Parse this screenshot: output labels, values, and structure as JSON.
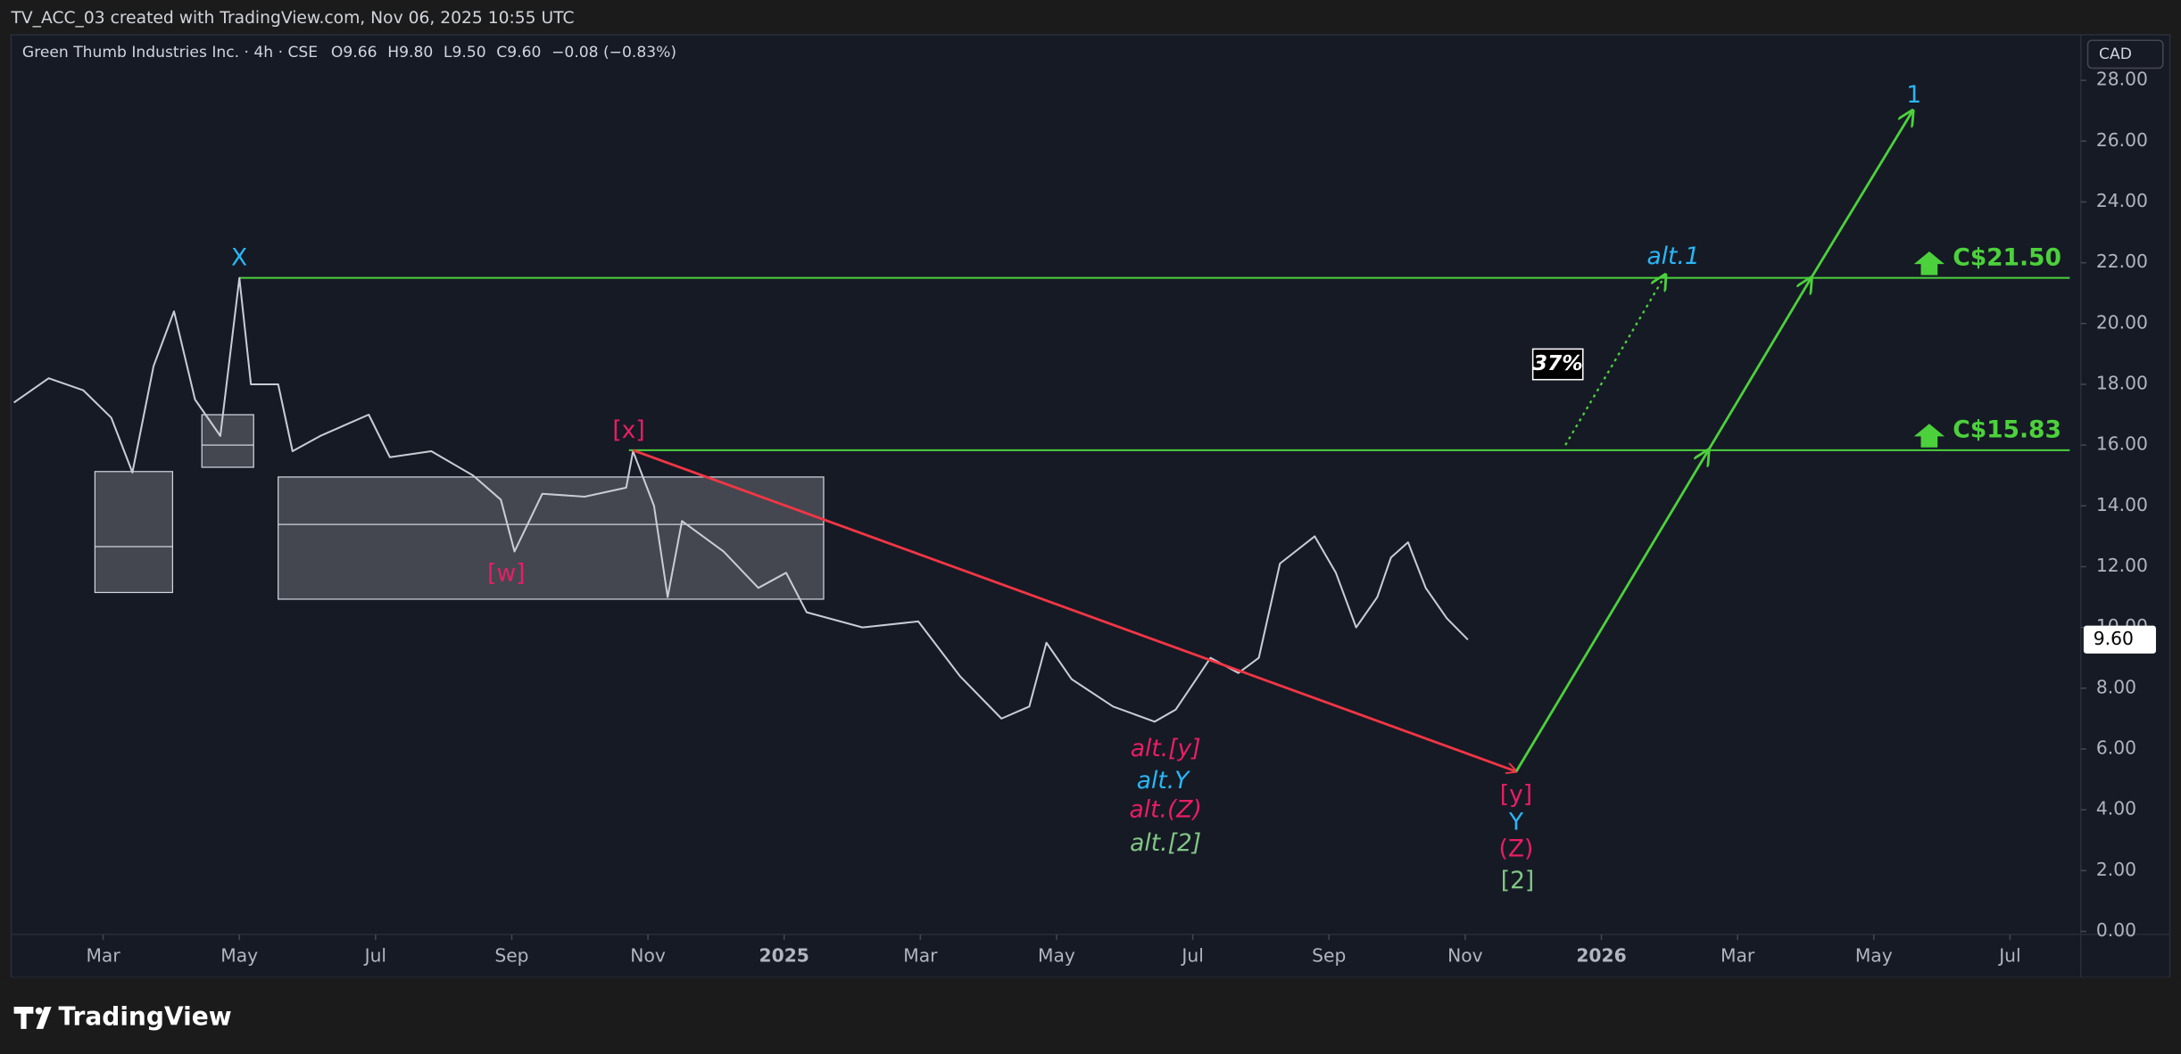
{
  "header": {
    "title": "TV_ACC_03 created with TradingView.com, Nov 06, 2025 10:55 UTC"
  },
  "footer": {
    "brand": "TradingView"
  },
  "chart_data": {
    "type": "line",
    "symbol": "Green Thumb Industries Inc. · 4h · CSE",
    "ohlc": [
      {
        "label": "O",
        "value": "9.66"
      },
      {
        "label": "H",
        "value": "9.80"
      },
      {
        "label": "L",
        "value": "9.50"
      },
      {
        "label": "C",
        "value": "9.60"
      }
    ],
    "change": "−0.08 (−0.83%)",
    "currency": "CAD",
    "last_price": {
      "value": 9.6,
      "label": "9.60"
    },
    "xlim": [
      0.69,
      31.04
    ],
    "ylim": [
      -0.1,
      29.5
    ],
    "xticks": [
      {
        "value": 2,
        "label": "Mar"
      },
      {
        "value": 4,
        "label": "May"
      },
      {
        "value": 6,
        "label": "Jul"
      },
      {
        "value": 8,
        "label": "Sep"
      },
      {
        "value": 10,
        "label": "Nov"
      },
      {
        "value": 12,
        "label": "2025"
      },
      {
        "value": 14,
        "label": "Mar"
      },
      {
        "value": 16,
        "label": "May"
      },
      {
        "value": 18,
        "label": "Jul"
      },
      {
        "value": 20,
        "label": "Sep"
      },
      {
        "value": 22,
        "label": "Nov"
      },
      {
        "value": 24,
        "label": "2026"
      },
      {
        "value": 26,
        "label": "Mar"
      },
      {
        "value": 28,
        "label": "May"
      },
      {
        "value": 30,
        "label": "Jul"
      }
    ],
    "yticks": [
      {
        "value": 0,
        "label": "0.00"
      },
      {
        "value": 2,
        "label": "2.00"
      },
      {
        "value": 4,
        "label": "4.00"
      },
      {
        "value": 6,
        "label": "6.00"
      },
      {
        "value": 8,
        "label": "8.00"
      },
      {
        "value": 10,
        "label": "10.00"
      },
      {
        "value": 12,
        "label": "12.00"
      },
      {
        "value": 14,
        "label": "14.00"
      },
      {
        "value": 16,
        "label": "16.00"
      },
      {
        "value": 18,
        "label": "18.00"
      },
      {
        "value": 20,
        "label": "20.00"
      },
      {
        "value": 22,
        "label": "22.00"
      },
      {
        "value": 24,
        "label": "24.00"
      },
      {
        "value": 26,
        "label": "26.00"
      },
      {
        "value": 28,
        "label": "28.00"
      }
    ],
    "series": [
      {
        "color": "#c9ccd4",
        "x": [
          0.69,
          1.2,
          1.71,
          2.12,
          2.43,
          2.74,
          3.04,
          3.35,
          3.72,
          4.0,
          4.17,
          4.57,
          4.78,
          5.19,
          5.9,
          6.21,
          6.82,
          7.43,
          7.84,
          8.04,
          8.45,
          9.07,
          9.68,
          9.78,
          10.09,
          10.29,
          10.5,
          11.11,
          11.62,
          12.03,
          12.33,
          13.15,
          13.97,
          14.58,
          15.19,
          15.6,
          15.85,
          16.22,
          16.83,
          17.44,
          17.75,
          18.26,
          18.67,
          18.97,
          19.28,
          19.79,
          20.1,
          20.4,
          20.71,
          20.91,
          21.16,
          21.42,
          21.73,
          22.04
        ],
        "values": [
          17.4,
          18.2,
          17.8,
          16.9,
          15.1,
          18.6,
          20.4,
          17.5,
          16.3,
          21.5,
          18.0,
          18.0,
          15.8,
          16.3,
          17.0,
          15.6,
          15.8,
          15.0,
          14.2,
          12.5,
          14.4,
          14.3,
          14.6,
          15.8,
          14.0,
          11.0,
          13.5,
          12.5,
          11.3,
          11.8,
          10.5,
          10.0,
          10.2,
          8.4,
          7.0,
          7.4,
          9.5,
          8.3,
          7.4,
          6.9,
          7.3,
          9.0,
          8.5,
          9.0,
          12.1,
          13.0,
          11.8,
          10.0,
          11.0,
          12.3,
          12.8,
          11.3,
          10.3,
          9.6
        ]
      }
    ],
    "zones": [
      {
        "x0": 1.88,
        "x1": 3.02,
        "top": 15.13,
        "mid": 12.66,
        "bottom": 11.15
      },
      {
        "x0": 3.45,
        "x1": 4.21,
        "top": 17.0,
        "mid": 16.0,
        "bottom": 15.27
      },
      {
        "x0": 4.57,
        "x1": 12.58,
        "top": 14.95,
        "mid": 13.39,
        "bottom": 10.93
      }
    ],
    "levels": [
      {
        "value": 21.5,
        "label": "C$21.50",
        "x0": 4.0,
        "color": "#4cd13c"
      },
      {
        "value": 15.83,
        "label": "C$15.83",
        "x0": 9.72,
        "color": "#4cd13c"
      }
    ],
    "paths": [
      {
        "color": "#f23645",
        "style": "solid",
        "x": [
          9.78,
          22.75
        ],
        "y": [
          15.83,
          5.26
        ]
      },
      {
        "color": "#4cd13c",
        "style": "solid",
        "x": [
          22.75,
          25.57,
          27.08,
          28.57
        ],
        "y": [
          5.26,
          15.83,
          21.5,
          27.0
        ]
      },
      {
        "color": "#4cd13c",
        "style": "dotted",
        "x": [
          23.47,
          24.94
        ],
        "y": [
          16.0,
          21.6
        ]
      }
    ],
    "annotations": [
      "X",
      "[x]",
      "[w]",
      "alt.[y]",
      "alt.Y",
      "alt.(Z)",
      "alt.[2]",
      "[y]",
      "Y",
      "(Z)",
      "[2]",
      "1",
      "alt.1",
      "37%"
    ]
  }
}
